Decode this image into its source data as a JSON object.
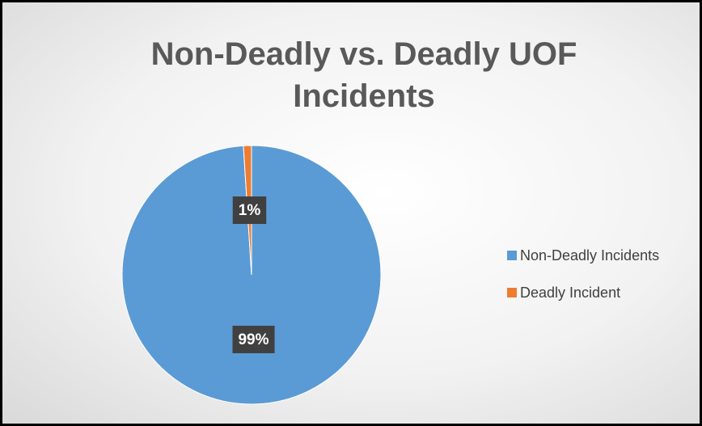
{
  "chart_data": {
    "type": "pie",
    "title": "Non-Deadly vs. Deadly UOF Incidents",
    "categories": [
      "Non-Deadly Incidents",
      "Deadly Incident"
    ],
    "values": [
      99,
      1
    ],
    "value_labels": [
      "99%",
      "1%"
    ],
    "colors": [
      "#5b9bd5",
      "#ed7d31"
    ],
    "legend": "right"
  }
}
